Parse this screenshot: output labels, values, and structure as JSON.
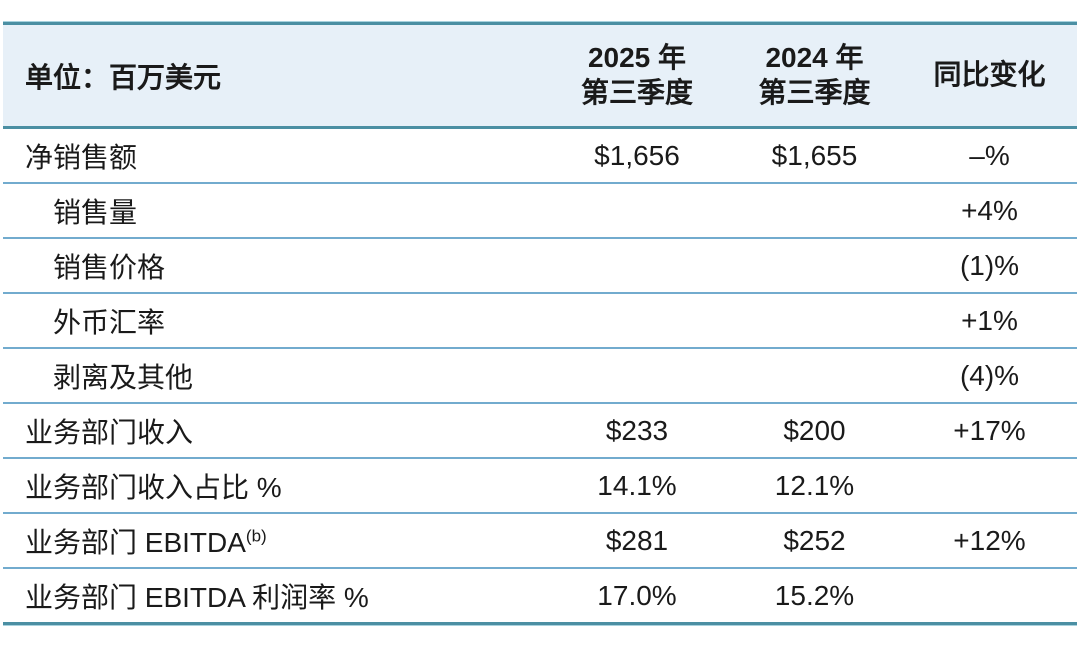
{
  "table": {
    "unit_label": "单位：百万美元",
    "columns": {
      "c2025_line1": "2025 年",
      "c2025_line2": "第三季度",
      "c2024_line1": "2024 年",
      "c2024_line2": "第三季度",
      "yoy": "同比变化"
    },
    "rows": [
      {
        "label": "净销售额",
        "q3_2025": "$1,656",
        "q3_2024": "$1,655",
        "yoy": "–%"
      },
      {
        "label": "销售量",
        "q3_2025": "",
        "q3_2024": "",
        "yoy": "+4%"
      },
      {
        "label": "销售价格",
        "q3_2025": "",
        "q3_2024": "",
        "yoy": "(1)%"
      },
      {
        "label": "外币汇率",
        "q3_2025": "",
        "q3_2024": "",
        "yoy": "+1%"
      },
      {
        "label": "剥离及其他",
        "q3_2025": "",
        "q3_2024": "",
        "yoy": "(4)%"
      },
      {
        "label": "业务部门收入",
        "q3_2025": "$233",
        "q3_2024": "$200",
        "yoy": "+17%"
      },
      {
        "label": "业务部门收入占比 %",
        "q3_2025": "14.1%",
        "q3_2024": "12.1%",
        "yoy": ""
      },
      {
        "label": "业务部门 EBITDA",
        "label_sup": "(b)",
        "q3_2025": "$281",
        "q3_2024": "$252",
        "yoy": "+12%"
      },
      {
        "label": "业务部门 EBITDA 利润率 %",
        "q3_2025": "17.0%",
        "q3_2024": "15.2%",
        "yoy": ""
      }
    ],
    "colors": {
      "accent_teal_border": "#4b8fa3",
      "row_divider_blue": "#72abce",
      "header_background": "#e7f0f8",
      "text": "#1a1a1a"
    }
  },
  "chart_data": {
    "type": "table",
    "title": "单位：百万美元",
    "columns": [
      "",
      "2025 年 第三季度",
      "2024 年 第三季度",
      "同比变化"
    ],
    "rows": [
      [
        "净销售额",
        "$1,656",
        "$1,655",
        "–%"
      ],
      [
        "销售量",
        "",
        "",
        "+4%"
      ],
      [
        "销售价格",
        "",
        "",
        "(1)%"
      ],
      [
        "外币汇率",
        "",
        "",
        "+1%"
      ],
      [
        "剥离及其他",
        "",
        "",
        "(4)%"
      ],
      [
        "业务部门收入",
        "$233",
        "$200",
        "+17%"
      ],
      [
        "业务部门收入占比 %",
        "14.1%",
        "12.1%",
        ""
      ],
      [
        "业务部门 EBITDA(b)",
        "$281",
        "$252",
        "+12%"
      ],
      [
        "业务部门 EBITDA 利润率 %",
        "17.0%",
        "15.2%",
        ""
      ]
    ]
  }
}
